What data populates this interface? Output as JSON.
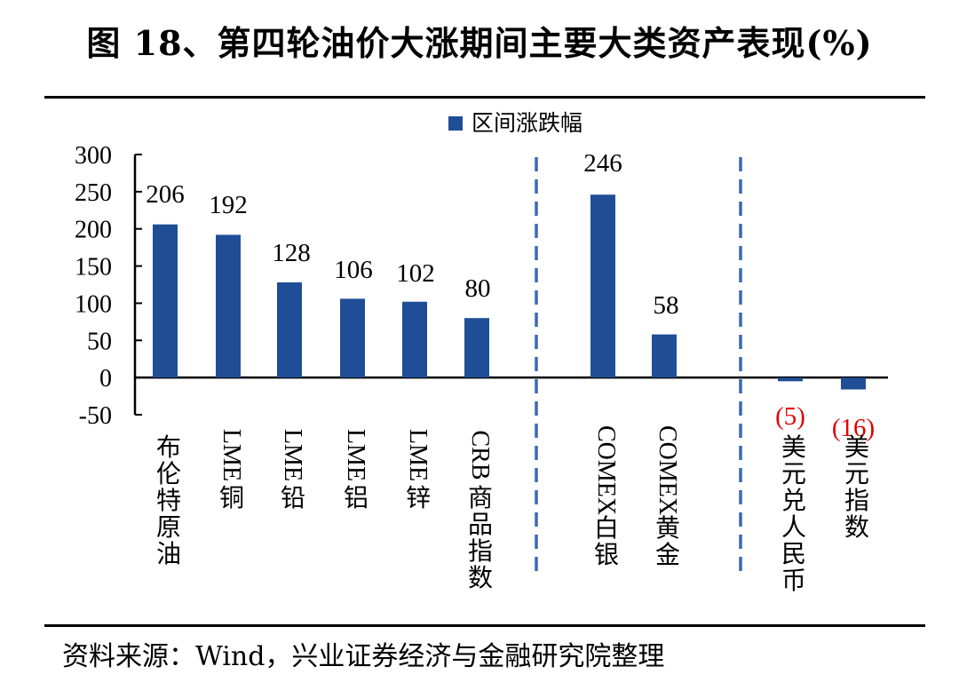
{
  "title": "图 18、第四轮油价大涨期间主要大类资产表现(%)",
  "source": "资料来源：Wind，兴业证券经济与金融研究院整理",
  "colors": {
    "bar": "#1f4e96",
    "negative_label": "#e00000",
    "divider": "#3a6ab0"
  },
  "chart_data": {
    "type": "bar",
    "title": "",
    "xlabel": "",
    "ylabel": "",
    "ylim": [
      -50,
      300
    ],
    "yticks": [
      -50,
      0,
      50,
      100,
      150,
      200,
      250,
      300
    ],
    "legend": {
      "position": "top",
      "entries": [
        "区间涨跌幅"
      ]
    },
    "grid": false,
    "categories": [
      "布伦特原油",
      "LME铜",
      "LME铅",
      "LME铝",
      "LME锌",
      "CRB商品指数",
      "COMEX白银",
      "COMEX黄金",
      "美元兑人民币",
      "美元指数"
    ],
    "series": [
      {
        "name": "区间涨跌幅",
        "values": [
          206,
          192,
          128,
          106,
          102,
          80,
          246,
          58,
          -5,
          -16
        ]
      }
    ],
    "data_labels": [
      "206",
      "192",
      "128",
      "106",
      "102",
      "80",
      "246",
      "58",
      "(5)",
      "(16)"
    ],
    "group_dividers": "dashed vertical lines after CRB商品指数 and after COMEX黄金"
  }
}
